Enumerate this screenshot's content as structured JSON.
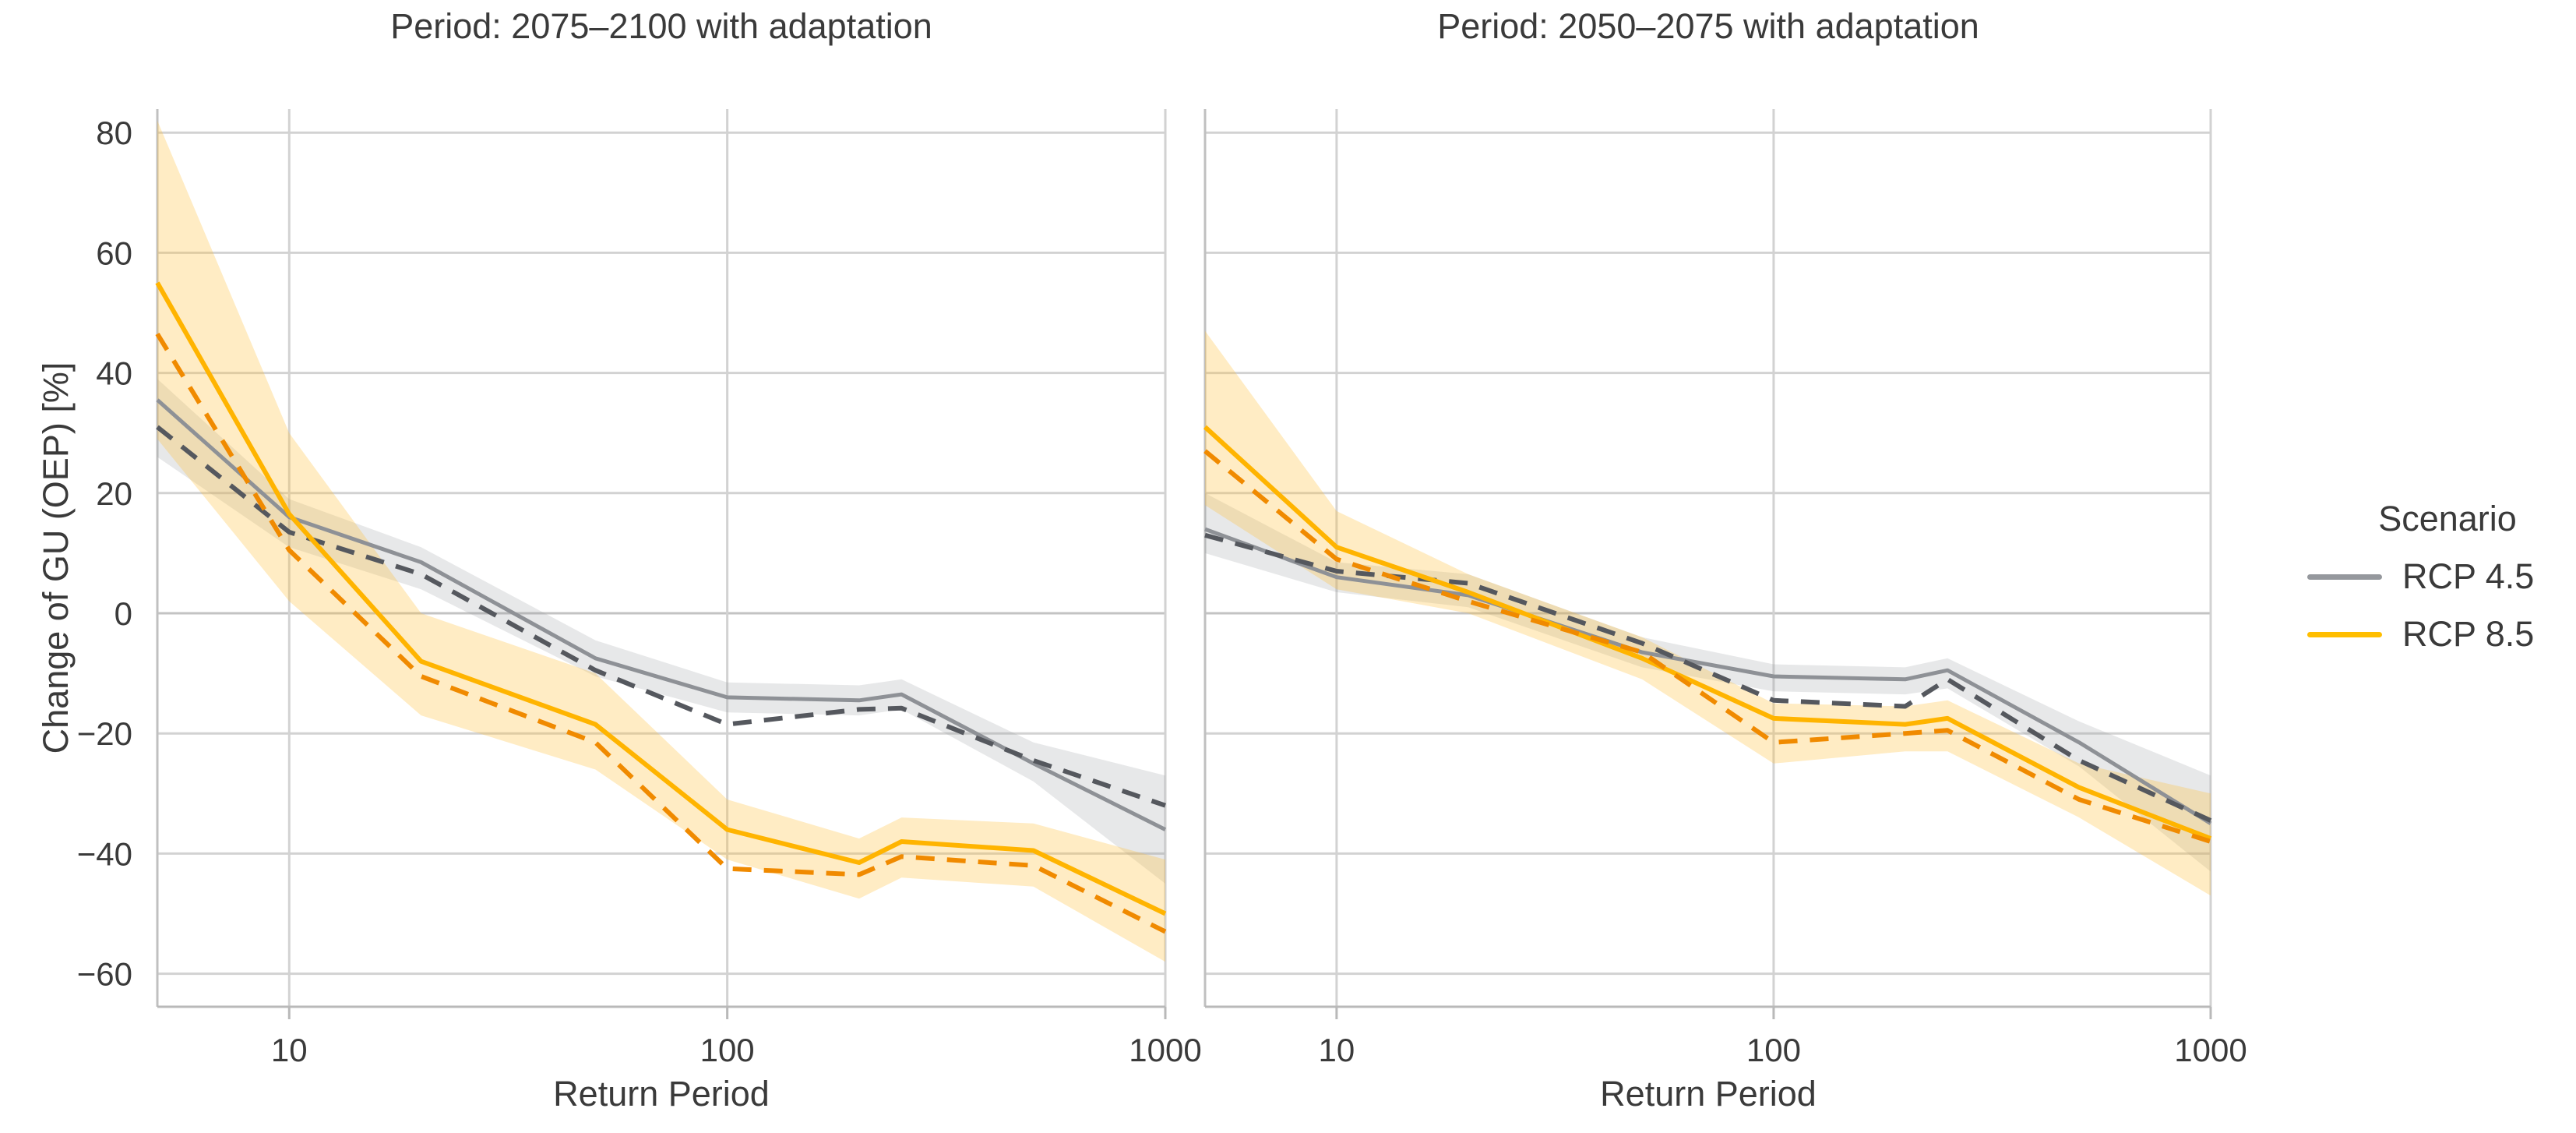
{
  "figure": {
    "y_axis_label": "Change of GU (OEP) [%]",
    "x_axis_label": "Return Period",
    "y_tick_labels": [
      "80",
      "60",
      "40",
      "20",
      "0",
      "−20",
      "−40",
      "−60"
    ],
    "x_tick_labels": [
      "10",
      "100",
      "1000"
    ],
    "text_color": "#3a3a3a",
    "grid_color": "#d2d2d2",
    "spine_color": "#c0c0c0"
  },
  "legend": {
    "title": "Scenario",
    "items": [
      {
        "label": "RCP 4.5",
        "color": "#95989d"
      },
      {
        "label": "RCP 8.5",
        "color": "#ffbe00"
      }
    ]
  },
  "chart_data": [
    {
      "type": "line",
      "title": "Period: 2075–2100 with adaptation",
      "xlabel": "Return Period",
      "ylabel": "Change of GU (OEP) [%]",
      "xscale": "log",
      "xlim": [
        5,
        1000
      ],
      "ylim": [
        -65,
        85
      ],
      "grid": true,
      "legend_position": "right",
      "x": [
        5,
        10,
        20,
        50,
        100,
        200,
        250,
        500,
        1000
      ],
      "xticks": [
        10,
        100,
        1000
      ],
      "yticks": [
        80,
        60,
        40,
        20,
        0,
        -20,
        -40,
        -60
      ],
      "series": [
        {
          "name": "RCP 4.5",
          "style": "solid",
          "color": "#8e9196",
          "values": [
            35.5,
            16,
            8.5,
            -7.5,
            -14,
            -14.5,
            -13.5,
            -25,
            -36
          ],
          "band_low": [
            26,
            11,
            4,
            -10.5,
            -16.5,
            -17,
            -16,
            -28,
            -45
          ],
          "band_high": [
            39,
            19,
            11,
            -4.5,
            -11.5,
            -12,
            -11,
            -21.5,
            -27
          ],
          "band_color": "rgba(145,148,153,0.22)"
        },
        {
          "name": "RCP 4.5",
          "style": "dashed",
          "color": "#55585e",
          "values": [
            31,
            13.5,
            6.5,
            -9.5,
            -18.5,
            -16,
            -15.8,
            -24.5,
            -32
          ]
        },
        {
          "name": "RCP 8.5",
          "style": "solid",
          "color": "#ffb400",
          "values": [
            55,
            16.5,
            -8,
            -18.5,
            -36,
            -41.5,
            -38,
            -39.5,
            -50
          ],
          "band_low": [
            29,
            2,
            -17,
            -26,
            -41,
            -47.5,
            -44,
            -45.5,
            -58
          ],
          "band_high": [
            82,
            30,
            0,
            -10,
            -31,
            -37.5,
            -34,
            -35,
            -41
          ],
          "band_color": "rgba(255,193,61,0.30)"
        },
        {
          "name": "RCP 8.5",
          "style": "dashed",
          "color": "#f08a00",
          "values": [
            46.5,
            10.5,
            -10.5,
            -21.5,
            -42.5,
            -43.5,
            -40.5,
            -42,
            -53
          ]
        }
      ]
    },
    {
      "type": "line",
      "title": "Period: 2050–2075 with adaptation",
      "xlabel": "Return Period",
      "ylabel": "Change of GU (OEP) [%]",
      "xscale": "log",
      "xlim": [
        5,
        1000
      ],
      "ylim": [
        -65,
        85
      ],
      "grid": true,
      "x": [
        5,
        10,
        20,
        50,
        100,
        200,
        250,
        500,
        1000
      ],
      "xticks": [
        10,
        100,
        1000
      ],
      "yticks": [
        80,
        60,
        40,
        20,
        0,
        -20,
        -40,
        -60
      ],
      "series": [
        {
          "name": "RCP 4.5",
          "style": "solid",
          "color": "#8e9196",
          "values": [
            14,
            6,
            3,
            -6.5,
            -10.5,
            -11,
            -9.5,
            -21.5,
            -35
          ],
          "band_low": [
            10,
            3.5,
            1,
            -9,
            -13,
            -13.5,
            -12.5,
            -25.5,
            -43
          ],
          "band_high": [
            20,
            8.5,
            6.5,
            -4,
            -8.5,
            -9,
            -7.5,
            -18,
            -27
          ],
          "band_color": "rgba(145,148,153,0.22)"
        },
        {
          "name": "RCP 4.5",
          "style": "dashed",
          "color": "#55585e",
          "values": [
            13,
            7,
            5,
            -5,
            -14.5,
            -15.5,
            -11,
            -24.5,
            -34.5
          ]
        },
        {
          "name": "RCP 8.5",
          "style": "solid",
          "color": "#ffb400",
          "values": [
            31,
            11,
            3.5,
            -7.5,
            -17.5,
            -18.5,
            -17.5,
            -29,
            -37.5
          ],
          "band_low": [
            18,
            4,
            0,
            -11,
            -25,
            -23,
            -23,
            -34,
            -47
          ],
          "band_high": [
            47,
            17,
            6.5,
            -4,
            -15,
            -15.5,
            -14.5,
            -25,
            -30
          ],
          "band_color": "rgba(255,193,61,0.30)"
        },
        {
          "name": "RCP 8.5",
          "style": "dashed",
          "color": "#f08a00",
          "values": [
            27,
            9,
            2,
            -6.5,
            -21.5,
            -20,
            -19.5,
            -31,
            -38
          ]
        }
      ]
    }
  ]
}
